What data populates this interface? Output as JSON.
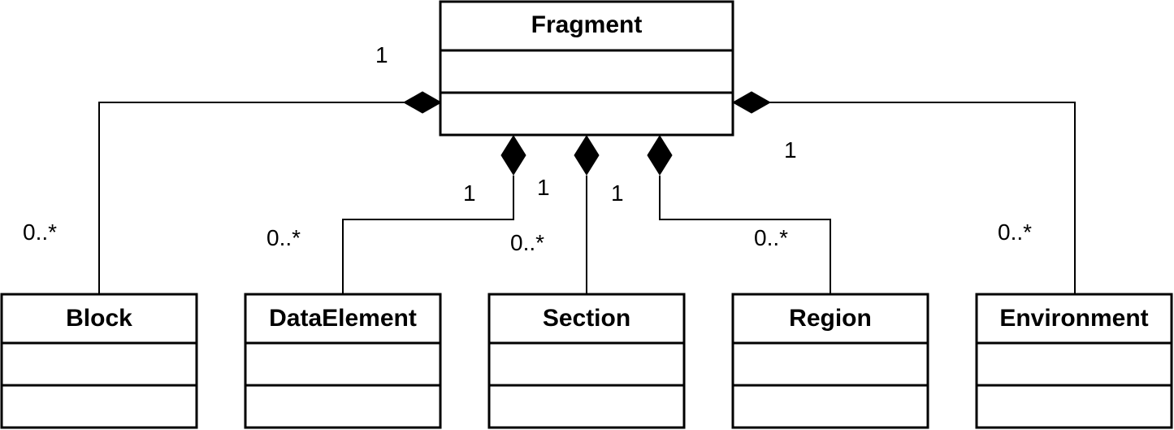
{
  "classes": {
    "fragment": "Fragment",
    "block": "Block",
    "data_element": "DataElement",
    "section": "Section",
    "region": "Region",
    "environment": "Environment"
  },
  "associations": [
    {
      "whole": "Fragment",
      "part": "Block",
      "type": "composition",
      "whole_multiplicity": "1",
      "part_multiplicity": "0..*"
    },
    {
      "whole": "Fragment",
      "part": "DataElement",
      "type": "composition",
      "whole_multiplicity": "1",
      "part_multiplicity": "0..*"
    },
    {
      "whole": "Fragment",
      "part": "Section",
      "type": "composition",
      "whole_multiplicity": "1",
      "part_multiplicity": "0..*"
    },
    {
      "whole": "Fragment",
      "part": "Region",
      "type": "composition",
      "whole_multiplicity": "1",
      "part_multiplicity": "0..*"
    },
    {
      "whole": "Fragment",
      "part": "Environment",
      "type": "composition",
      "whole_multiplicity": "1",
      "part_multiplicity": "0..*"
    }
  ],
  "colors": {
    "line": "#000000",
    "background": "#ffffff"
  }
}
